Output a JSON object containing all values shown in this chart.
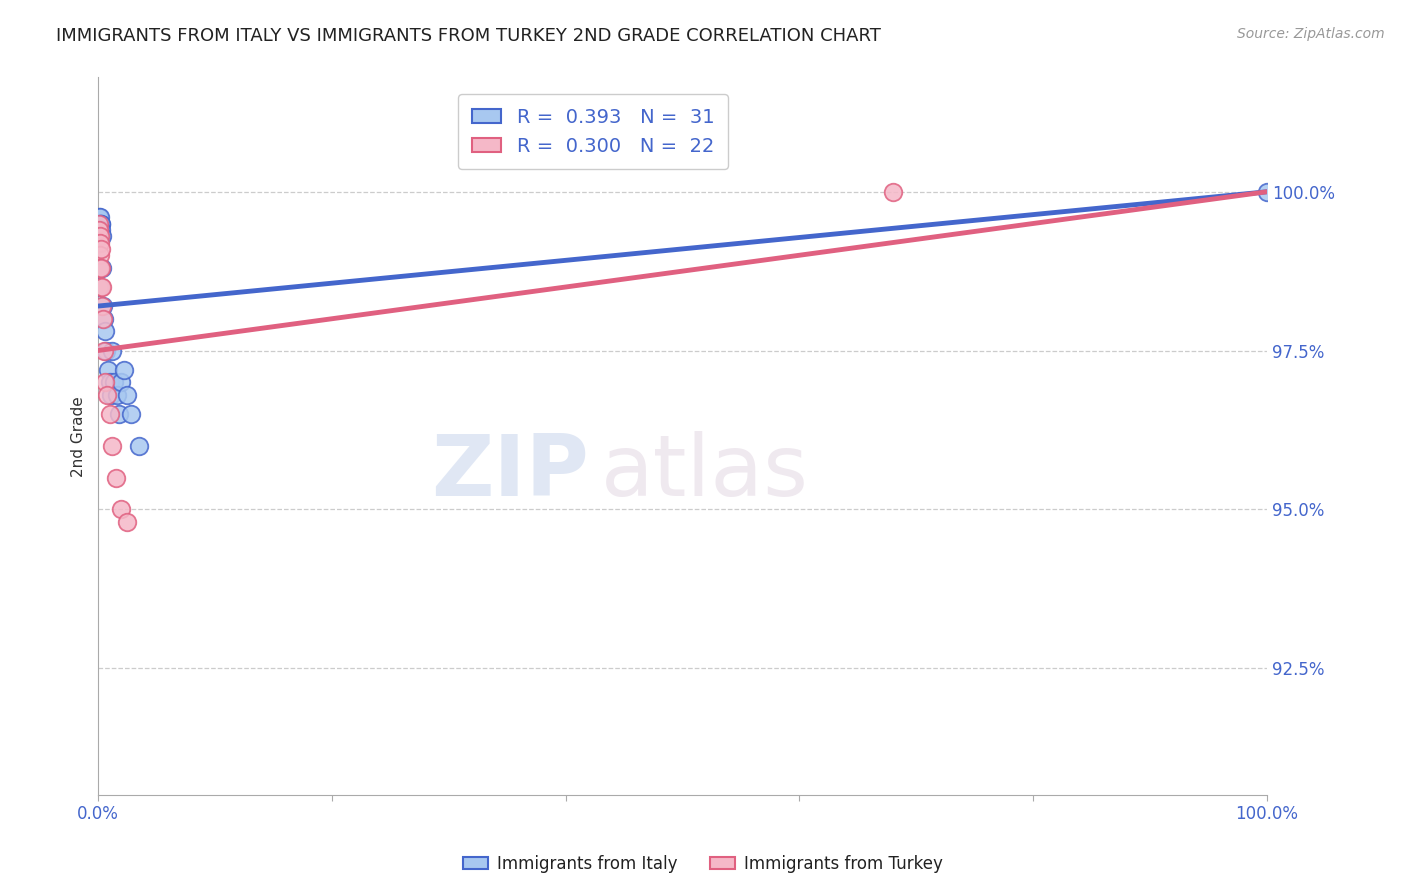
{
  "title": "IMMIGRANTS FROM ITALY VS IMMIGRANTS FROM TURKEY 2ND GRADE CORRELATION CHART",
  "source_text": "Source: ZipAtlas.com",
  "ylabel": "2nd Grade",
  "R_italy": 0.393,
  "N_italy": 31,
  "R_turkey": 0.3,
  "N_turkey": 22,
  "xlim": [
    0.0,
    100.0
  ],
  "ylim": [
    90.5,
    101.8
  ],
  "yticks": [
    92.5,
    95.0,
    97.5,
    100.0
  ],
  "xticks": [
    0.0,
    20.0,
    40.0,
    60.0,
    80.0,
    100.0
  ],
  "xtick_labels": [
    "0.0%",
    "",
    "",
    "",
    "",
    "100.0%"
  ],
  "ytick_labels": [
    "92.5%",
    "95.0%",
    "97.5%",
    "100.0%"
  ],
  "color_italy": "#a8c8f0",
  "color_turkey": "#f5b8c8",
  "trendline_italy": "#4466cc",
  "trendline_turkey": "#e06080",
  "italy_x": [
    0.05,
    0.08,
    0.1,
    0.12,
    0.14,
    0.16,
    0.18,
    0.2,
    0.22,
    0.24,
    0.26,
    0.28,
    0.3,
    0.35,
    0.4,
    0.5,
    0.6,
    0.7,
    0.85,
    1.0,
    1.1,
    1.2,
    1.4,
    1.6,
    1.8,
    2.0,
    2.2,
    2.5,
    2.8,
    3.5,
    100.0
  ],
  "italy_y": [
    98.5,
    99.6,
    99.5,
    99.4,
    99.3,
    99.6,
    99.5,
    99.4,
    99.3,
    99.5,
    99.5,
    99.4,
    99.3,
    98.8,
    98.2,
    98.0,
    97.8,
    97.5,
    97.2,
    97.0,
    96.8,
    97.5,
    97.0,
    96.8,
    96.5,
    97.0,
    97.2,
    96.8,
    96.5,
    96.0,
    100.0
  ],
  "turkey_x": [
    0.05,
    0.1,
    0.12,
    0.14,
    0.16,
    0.18,
    0.2,
    0.22,
    0.24,
    0.26,
    0.3,
    0.35,
    0.4,
    0.5,
    0.6,
    0.8,
    1.0,
    1.2,
    1.5,
    2.0,
    2.5,
    68.0
  ],
  "turkey_y": [
    99.2,
    99.5,
    99.4,
    99.3,
    99.2,
    99.0,
    98.8,
    98.5,
    99.1,
    98.8,
    98.5,
    98.2,
    98.0,
    97.5,
    97.0,
    96.8,
    96.5,
    96.0,
    95.5,
    95.0,
    94.8,
    100.0
  ],
  "trendline_italy_start_x": 0.0,
  "trendline_italy_end_x": 100.0,
  "trendline_italy_start_y": 98.2,
  "trendline_italy_end_y": 100.0,
  "trendline_turkey_start_x": 0.0,
  "trendline_turkey_end_x": 100.0,
  "trendline_turkey_start_y": 97.5,
  "trendline_turkey_end_y": 100.0,
  "background_color": "#ffffff",
  "grid_color": "#cccccc",
  "title_fontsize": 13,
  "axis_label_color": "#4466cc",
  "label_color": "#333333"
}
